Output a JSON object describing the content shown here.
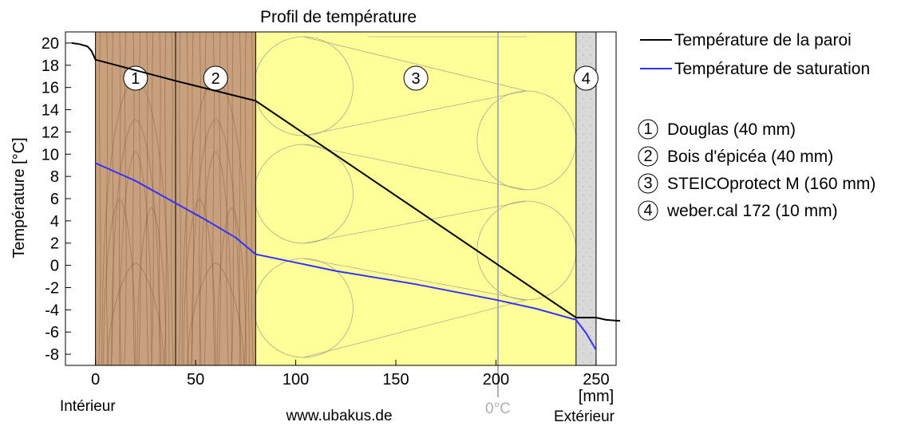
{
  "chart_data": {
    "type": "line",
    "title": "Profil de température",
    "xlabel": "",
    "ylabel": "Température [°C]",
    "x_unit_label": "[mm]",
    "xlim": [
      -15,
      260
    ],
    "ylim": [
      -9,
      21
    ],
    "x_ticks": [
      0,
      50,
      100,
      150,
      200,
      250
    ],
    "y_ticks": [
      20,
      18,
      16,
      14,
      12,
      10,
      8,
      6,
      4,
      2,
      0,
      -2,
      -4,
      -6,
      -8
    ],
    "y_tick_labels": [
      "20",
      "18",
      "16",
      "14",
      "12",
      "10",
      "8",
      "6",
      "4",
      "2",
      "0",
      "-2",
      "-4",
      "-6",
      "-8"
    ],
    "grid": false,
    "legend_position": "right",
    "series": [
      {
        "name": "Température de la paroi",
        "color": "#000000",
        "points": [
          [
            -12,
            20.0
          ],
          [
            -8,
            19.9
          ],
          [
            -4,
            19.7
          ],
          [
            -2,
            19.3
          ],
          [
            0,
            18.5
          ],
          [
            40,
            16.6
          ],
          [
            80,
            14.8
          ],
          [
            240,
            -4.7
          ],
          [
            250,
            -4.7
          ],
          [
            255,
            -4.9
          ],
          [
            262,
            -5.0
          ]
        ]
      },
      {
        "name": "Température de saturation",
        "color": "#3333ff",
        "points": [
          [
            0,
            9.2
          ],
          [
            20,
            7.6
          ],
          [
            40,
            5.6
          ],
          [
            55,
            4.1
          ],
          [
            70,
            2.5
          ],
          [
            80,
            1.0
          ],
          [
            120,
            -0.5
          ],
          [
            160,
            -1.7
          ],
          [
            200,
            -3.1
          ],
          [
            220,
            -3.9
          ],
          [
            240,
            -4.9
          ],
          [
            245,
            -6.1
          ],
          [
            250,
            -7.6
          ]
        ]
      }
    ],
    "layers": [
      {
        "number": "1",
        "name": "Douglas (40 mm)",
        "from": 0,
        "to": 40,
        "color": "#c8a07e"
      },
      {
        "number": "2",
        "name": "Bois d'épicéa (40 mm)",
        "from": 40,
        "to": 80,
        "color": "#c8a07e"
      },
      {
        "number": "3",
        "name": "STEICOprotect M (160 mm)",
        "from": 80,
        "to": 240,
        "color": "#ffff99"
      },
      {
        "number": "4",
        "name": "weber.cal 172 (10 mm)",
        "from": 240,
        "to": 250,
        "color": "#d9d9d9"
      }
    ],
    "zero_line": {
      "x": 201,
      "label": "0°C",
      "color": "#b0b0b0"
    },
    "annotations": {
      "interior": "Intérieur",
      "exterior": "Extérieur",
      "website": "www.ubakus.de"
    }
  }
}
